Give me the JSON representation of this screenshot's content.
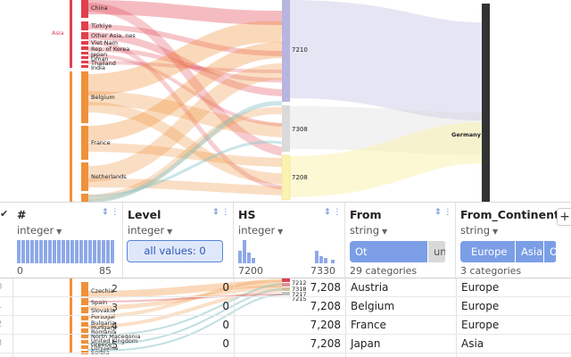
{
  "sankey": {
    "continent_label": "Asia",
    "source_nodes": [
      "China",
      "Türkiye",
      "Other Asia, nes",
      "Viet Nam",
      "Rep. of Korea",
      "Japan",
      "Oman",
      "Thailand",
      "India",
      "Belgium",
      "France",
      "Netherlands"
    ],
    "lower_nodes": [
      "Czechia",
      "Spain",
      "Slovakia",
      "Portugal",
      "Bulgaria",
      "Hungary",
      "Romania",
      "North Macedonia",
      "United Kingdom",
      "Greece",
      "Lithuania",
      "Serbia"
    ],
    "hs_nodes": [
      "7210",
      "7308",
      "7208"
    ],
    "small_hs": [
      "7212",
      "7318",
      "7217",
      "7215"
    ],
    "target_node": "Germany"
  },
  "table": {
    "check_icon": "check-icon",
    "add_column_label": "+",
    "columns": [
      {
        "name": "#",
        "type": "integer",
        "axis_min": "0",
        "axis_max": "85"
      },
      {
        "name": "Level",
        "type": "integer",
        "filter_label": "all values: 0"
      },
      {
        "name": "HS",
        "type": "integer",
        "axis_min": "7200",
        "axis_max": "7330"
      },
      {
        "name": "From",
        "type": "string",
        "segments": [
          "Ot",
          "unio"
        ],
        "count": "29 categories"
      },
      {
        "name": "From_Continent",
        "type": "string",
        "segments": [
          "Europe",
          "Asia",
          "Oth"
        ],
        "count": "3 categories"
      }
    ],
    "rows": [
      {
        "idx": "0",
        "num": "",
        "level": "0",
        "hs": "7,208",
        "from": "Austria",
        "continent": "Europe"
      },
      {
        "idx": "1",
        "num": "",
        "level": "0",
        "hs": "7,208",
        "from": "Belgium",
        "continent": "Europe"
      },
      {
        "idx": "2",
        "num": "",
        "level": "0",
        "hs": "7,208",
        "from": "France",
        "continent": "Europe"
      },
      {
        "idx": "3",
        "num": "",
        "level": "0",
        "hs": "7,208",
        "from": "Japan",
        "continent": "Asia"
      }
    ],
    "row_numbers_over_sankey": [
      "2",
      "3",
      "4",
      "5"
    ]
  },
  "colors": {
    "asia": "#e0404e",
    "europe": "#f0913a",
    "other": "#8cc5c9",
    "hs7210": "#b8b5e0",
    "hs7308": "#dadada",
    "hs7208": "#fbf3b0",
    "target": "#333333",
    "accent": "#5b84d6"
  }
}
